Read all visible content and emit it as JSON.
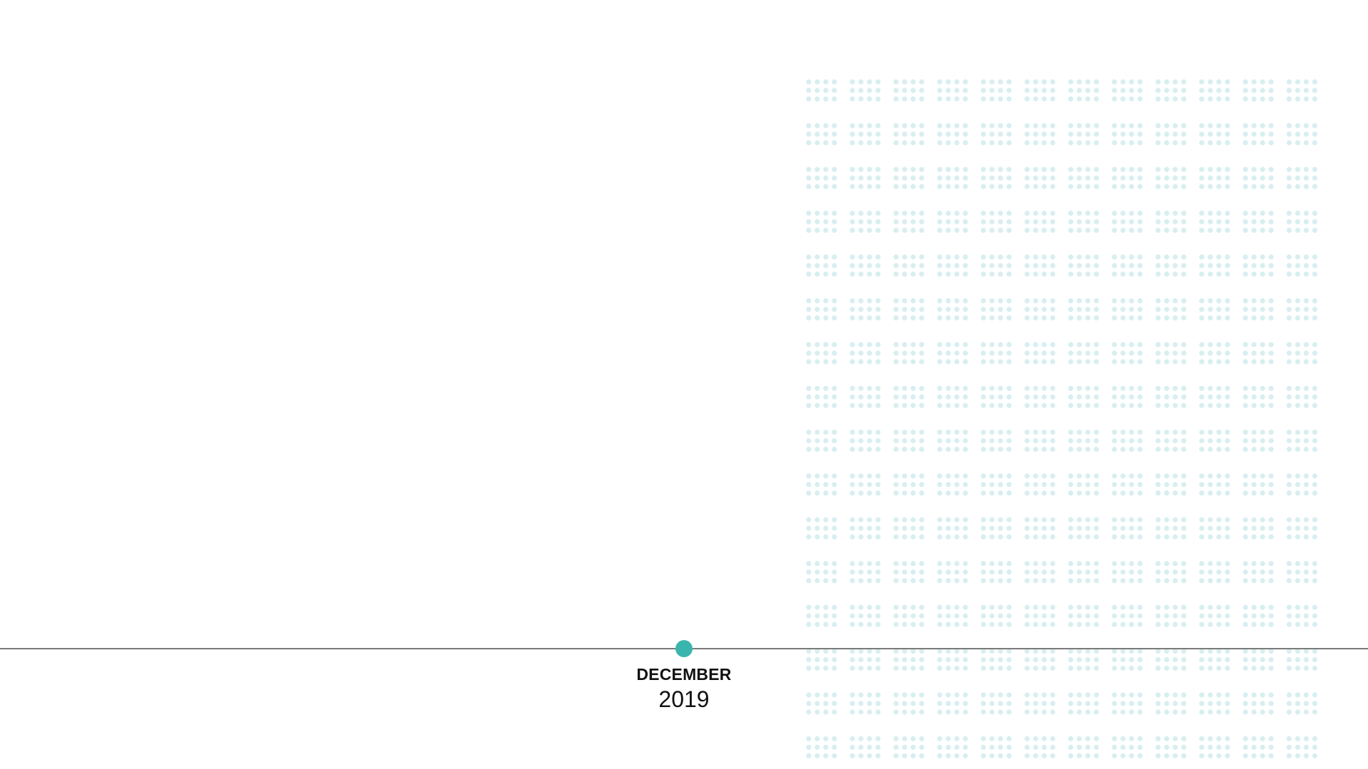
{
  "timeline": {
    "month": "DECEMBER",
    "year": "2019"
  },
  "colors": {
    "accent": "#3ab5ad",
    "line": "#7a7a7a",
    "dots": "#d8eef0",
    "background": "#ffffff"
  }
}
